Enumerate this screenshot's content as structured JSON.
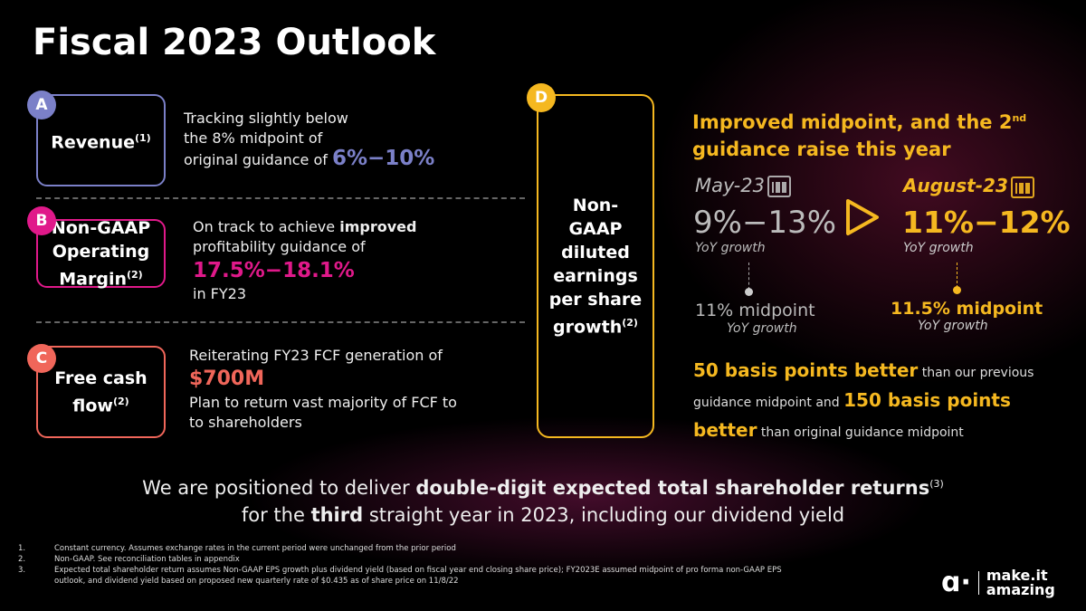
{
  "title": "Fiscal 2023 Outlook",
  "colors": {
    "a": "#7b80c8",
    "b": "#e0198a",
    "c": "#f0665a",
    "d": "#f5b820"
  },
  "a": {
    "badge": "A",
    "label": "Revenue",
    "sup": "(1)",
    "line1": "Tracking slightly below",
    "line2": "the 8% midpoint of",
    "line3": "original guidance of ",
    "value": "6%−10%"
  },
  "b": {
    "badge": "B",
    "label1": "Non-GAAP",
    "label2": "Operating",
    "label3": "Margin",
    "sup": "(2)",
    "line1": "On track to achieve ",
    "bold": "improved",
    "line2": "profitability guidance of",
    "value": "17.5%−18.1%",
    "line3": "in FY23"
  },
  "c": {
    "badge": "C",
    "label1": "Free cash",
    "label2": "flow",
    "sup": "(2)",
    "line1": "Reiterating FY23 FCF generation of",
    "value": "$700M",
    "line2": "Plan to return vast majority of FCF to",
    "line3": "to shareholders"
  },
  "d": {
    "badge": "D",
    "label1": "Non-",
    "label2": "GAAP",
    "label3": "diluted",
    "label4": "earnings",
    "label5": "per share",
    "label6": "growth",
    "sup": "(2)"
  },
  "right": {
    "heading1": "Improved midpoint, and the 2",
    "heading_sup": "nd",
    "heading2": "guidance raise this year",
    "may": {
      "date": "May-23",
      "range": "9%−13%",
      "growth": "YoY growth",
      "midpoint": "11% midpoint",
      "mid_growth": "YoY growth"
    },
    "aug": {
      "date": "August-23",
      "range": "11%−12%",
      "growth": "YoY growth",
      "midpoint": "11.5% midpoint",
      "mid_growth": "YoY growth"
    },
    "s1": "50 basis points better",
    "s2": " than our previous guidance midpoint and ",
    "s3": "150 basis points better",
    "s4": " than original guidance midpoint"
  },
  "banner": {
    "t1": "We are positioned to deliver ",
    "b1": "double-digit expected total shareholder returns",
    "sup": "(3)",
    "t2": "for the ",
    "b2": "third",
    "t3": " straight year in 2023, including our dividend yield"
  },
  "footnotes": [
    {
      "n": "1.",
      "text": "Constant currency. Assumes exchange rates in the current period were unchanged from the prior period"
    },
    {
      "n": "2.",
      "text": "Non-GAAP. See reconciliation tables in appendix"
    },
    {
      "n": "3.",
      "text": "Expected total shareholder return assumes Non-GAAP EPS growth plus dividend yield (based on fiscal year end closing share price); FY2023E assumed midpoint of pro forma non-GAAP EPS"
    },
    {
      "n": "",
      "text": "outlook, and dividend yield based on proposed new quarterly rate of $0.435 as of share price on 11/8/22"
    }
  ],
  "logo": {
    "line1": "make.it",
    "line2": "amazing"
  }
}
